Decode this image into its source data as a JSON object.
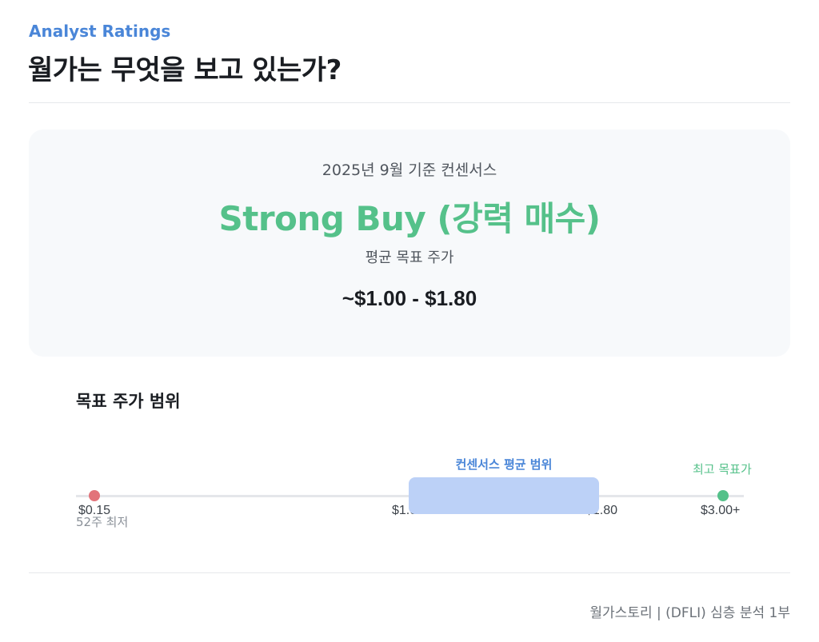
{
  "header": {
    "eyebrow": "Analyst Ratings",
    "title": "월가는 무엇을 보고 있는가?"
  },
  "consensus": {
    "as_of": "2025년 9월 기준 컨센서스",
    "rating": "Strong Buy (강력 매수)",
    "avg_target_label": "평균 목표 주가",
    "avg_target_value": "~$1.00 - $1.80"
  },
  "range": {
    "title": "목표 주가 범위",
    "band_label": "컨센서스 평균 범위",
    "low_value": "$0.15",
    "low_sublabel": "52주 최저",
    "band_low": "$1.00",
    "band_high": "$1.80",
    "high_value": "$3.00+",
    "high_label": "최고 목표가"
  },
  "footer": {
    "text": "월가스토리 | (DFLI) 심층 분석 1부"
  },
  "colors": {
    "accent": "#4a86d8",
    "positive": "#55c18a",
    "negative": "#e2737a",
    "band": "#bcd1f7"
  }
}
